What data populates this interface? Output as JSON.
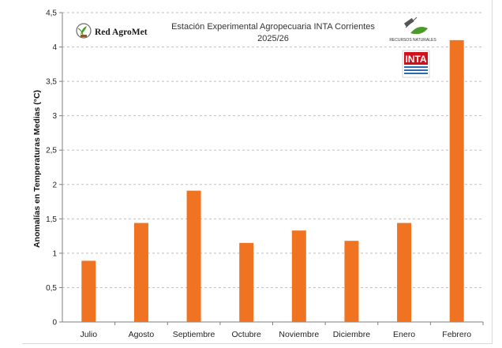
{
  "colors": {
    "bar": "#F07322",
    "grid": "#bfbfbf",
    "axis": "#7f7f7f",
    "inta_red": "#d0101a",
    "inta_blue": "#2b6cb0"
  },
  "logos": {
    "red_agromet": "Red AgroMet",
    "recursos": "RECURSOS NATURALES",
    "inta": "INTA",
    "icons": [
      "plant-globe-icon",
      "satellite-leaf-icon"
    ]
  },
  "chart_data": {
    "type": "bar",
    "title": "Estación Experimental Agropecuaria INTA Corrientes",
    "subtitle": "2025/26",
    "ylabel": "Anomalías en Temperaturas Medias (°C)",
    "xlabel": "",
    "categories": [
      "Julio",
      "Agosto",
      "Septiembre",
      "Octubre",
      "Noviembre",
      "Diciembre",
      "Enero",
      "Febrero"
    ],
    "values": [
      0.89,
      1.44,
      1.91,
      1.15,
      1.33,
      1.18,
      1.44,
      4.1
    ],
    "ylim": [
      0,
      4.5
    ],
    "yticks": [
      "0",
      "0,5",
      "1",
      "1,5",
      "2",
      "2,5",
      "3",
      "3,5",
      "4",
      "4,5"
    ],
    "grid": true,
    "legend": "none"
  }
}
